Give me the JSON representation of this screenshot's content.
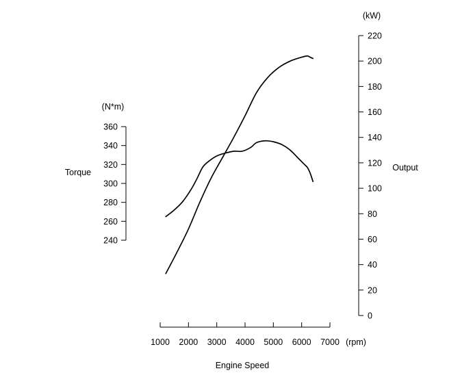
{
  "chart_data": {
    "type": "line",
    "x_axis": {
      "label": "Engine Speed",
      "unit": "(rpm)",
      "ticks": [
        1000,
        2000,
        3000,
        4000,
        5000,
        6000,
        7000
      ],
      "range": [
        1000,
        7000
      ]
    },
    "torque_axis": {
      "label": "Torque",
      "unit": "(N*m)",
      "ticks": [
        240,
        260,
        280,
        300,
        320,
        340,
        360
      ],
      "range": [
        240,
        360
      ]
    },
    "output_axis": {
      "label": "Output",
      "unit": "(kW)",
      "ticks": [
        0,
        20,
        40,
        60,
        80,
        100,
        120,
        140,
        160,
        180,
        200,
        220
      ],
      "range": [
        0,
        220
      ]
    },
    "series": [
      {
        "name": "Torque",
        "axis": "torque",
        "x": [
          1200,
          1500,
          1800,
          2100,
          2300,
          2500,
          2700,
          3000,
          3300,
          3600,
          3900,
          4200,
          4400,
          4700,
          5000,
          5300,
          5600,
          5900,
          6100,
          6200,
          6300,
          6400
        ],
        "y": [
          265,
          272,
          281,
          294,
          305,
          317,
          323,
          329,
          332,
          334,
          334,
          338,
          343,
          345,
          344,
          341,
          335,
          326,
          320,
          317,
          311,
          302
        ]
      },
      {
        "name": "Output",
        "axis": "output",
        "x": [
          1200,
          1600,
          2000,
          2400,
          2800,
          3200,
          3600,
          4000,
          4400,
          4800,
          5200,
          5600,
          6000,
          6200,
          6300,
          6400
        ],
        "y": [
          33,
          50,
          68,
          89,
          108,
          124,
          140,
          157,
          175,
          187,
          195,
          200,
          203,
          204,
          203,
          202
        ]
      }
    ]
  }
}
